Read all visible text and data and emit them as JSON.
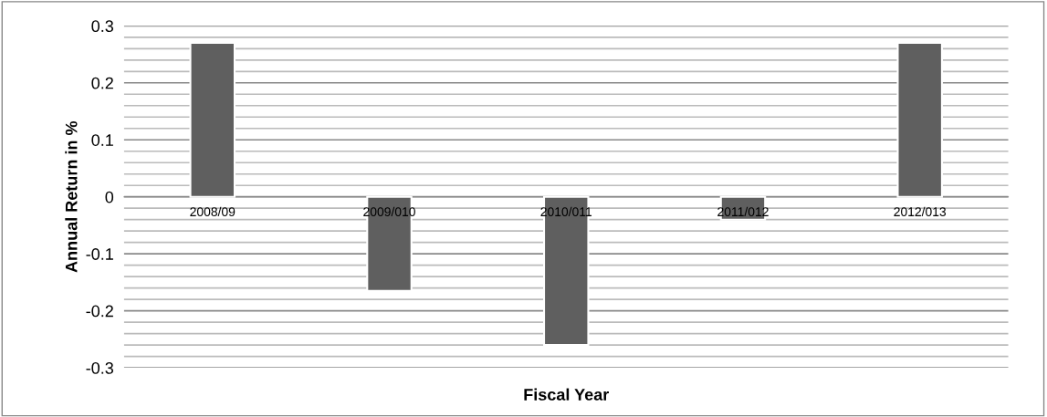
{
  "chart_data": {
    "type": "bar",
    "xlabel": "Fiscal Year",
    "ylabel": "Annual Return in %",
    "categories": [
      "2008/09",
      "2009/010",
      "2010/011",
      "2011/012",
      "2012/013"
    ],
    "values": [
      0.27,
      -0.165,
      -0.26,
      -0.04,
      0.27
    ],
    "color": "#5f5f5f",
    "ylim": [
      -0.3,
      0.3
    ],
    "yticks": [
      -0.3,
      {
        "value": -0.28,
        "label": null
      },
      {
        "value": -0.26,
        "label": null
      },
      {
        "value": -0.24,
        "label": null
      },
      {
        "value": -0.22,
        "label": null
      },
      -0.2,
      {
        "value": -0.18,
        "label": null
      },
      {
        "value": -0.16,
        "label": null
      },
      {
        "value": -0.14,
        "label": null
      },
      {
        "value": -0.12,
        "label": null
      },
      -0.1,
      {
        "value": -0.08,
        "label": null
      },
      {
        "value": -0.06,
        "label": null
      },
      {
        "value": -0.04,
        "label": null
      },
      {
        "value": -0.02,
        "label": null
      },
      0,
      {
        "value": 0.02,
        "label": null
      },
      {
        "value": 0.04,
        "label": null
      },
      {
        "value": 0.06,
        "label": null
      },
      {
        "value": 0.08,
        "label": null
      },
      0.1,
      {
        "value": 0.12,
        "label": null
      },
      {
        "value": 0.14,
        "label": null
      },
      {
        "value": 0.16,
        "label": null
      },
      {
        "value": 0.18,
        "label": null
      },
      0.2,
      {
        "value": 0.22,
        "label": null
      },
      {
        "value": 0.24,
        "label": null
      },
      {
        "value": 0.26,
        "label": null
      },
      {
        "value": 0.28,
        "label": null
      },
      0.3
    ],
    "grid": "y"
  }
}
